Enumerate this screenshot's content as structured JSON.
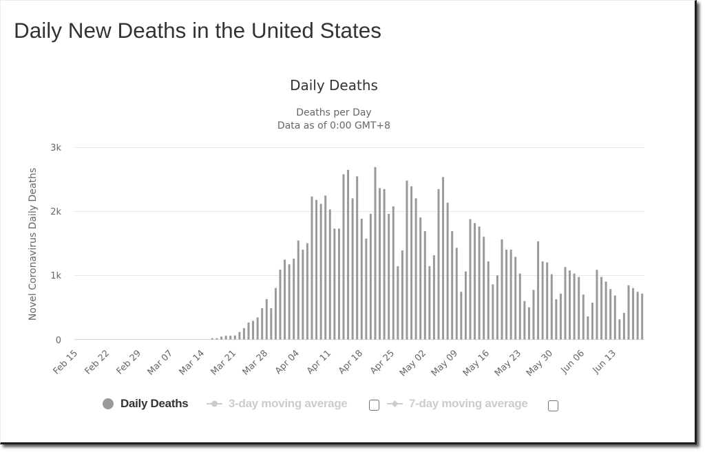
{
  "page": {
    "title": "Daily New Deaths in the United States"
  },
  "chart_data": {
    "type": "bar",
    "title": "Daily Deaths",
    "subtitle": [
      "Deaths per Day",
      "Data as of 0:00 GMT+8"
    ],
    "xlabel": "",
    "ylabel": "Novel Coronavirus Daily Deaths",
    "ylim": [
      0,
      3000
    ],
    "yticks": [
      0,
      1000,
      2000,
      3000
    ],
    "ytick_labels": [
      "0",
      "1k",
      "2k",
      "3k"
    ],
    "grid": true,
    "legend": "bottom",
    "xtick_labels": [
      "Feb 15",
      "Feb 22",
      "Feb 29",
      "Mar 07",
      "Mar 14",
      "Mar 21",
      "Mar 28",
      "Apr 04",
      "Apr 11",
      "Apr 18",
      "Apr 25",
      "May 02",
      "May 09",
      "May 16",
      "May 23",
      "May 30",
      "Jun 06",
      "Jun 13"
    ],
    "categories": [
      "Feb 15",
      "Feb 16",
      "Feb 17",
      "Feb 18",
      "Feb 19",
      "Feb 20",
      "Feb 21",
      "Feb 22",
      "Feb 23",
      "Feb 24",
      "Feb 25",
      "Feb 26",
      "Feb 27",
      "Feb 28",
      "Feb 29",
      "Mar 01",
      "Mar 02",
      "Mar 03",
      "Mar 04",
      "Mar 05",
      "Mar 06",
      "Mar 07",
      "Mar 08",
      "Mar 09",
      "Mar 10",
      "Mar 11",
      "Mar 12",
      "Mar 13",
      "Mar 14",
      "Mar 15",
      "Mar 16",
      "Mar 17",
      "Mar 18",
      "Mar 19",
      "Mar 20",
      "Mar 21",
      "Mar 22",
      "Mar 23",
      "Mar 24",
      "Mar 25",
      "Mar 26",
      "Mar 27",
      "Mar 28",
      "Mar 29",
      "Mar 30",
      "Mar 31",
      "Apr 01",
      "Apr 02",
      "Apr 03",
      "Apr 04",
      "Apr 05",
      "Apr 06",
      "Apr 07",
      "Apr 08",
      "Apr 09",
      "Apr 10",
      "Apr 11",
      "Apr 12",
      "Apr 13",
      "Apr 14",
      "Apr 15",
      "Apr 16",
      "Apr 17",
      "Apr 18",
      "Apr 19",
      "Apr 20",
      "Apr 21",
      "Apr 22",
      "Apr 23",
      "Apr 24",
      "Apr 25",
      "Apr 26",
      "Apr 27",
      "Apr 28",
      "Apr 29",
      "Apr 30",
      "May 01",
      "May 02",
      "May 03",
      "May 04",
      "May 05",
      "May 06",
      "May 07",
      "May 08",
      "May 09",
      "May 10",
      "May 11",
      "May 12",
      "May 13",
      "May 14",
      "May 15",
      "May 16",
      "May 17",
      "May 18",
      "May 19",
      "May 20",
      "May 21",
      "May 22",
      "May 23",
      "May 24",
      "May 25",
      "May 26",
      "May 27",
      "May 28",
      "May 29",
      "May 30",
      "May 31",
      "Jun 01",
      "Jun 02",
      "Jun 03",
      "Jun 04",
      "Jun 05",
      "Jun 06",
      "Jun 07",
      "Jun 08",
      "Jun 09",
      "Jun 10",
      "Jun 11",
      "Jun 12",
      "Jun 13",
      "Jun 14",
      "Jun 15",
      "Jun 16",
      "Jun 17",
      "Jun 18",
      "Jun 19"
    ],
    "series": [
      {
        "name": "Daily Deaths",
        "color": "#999999",
        "visible": true,
        "values": [
          0,
          0,
          0,
          0,
          0,
          0,
          0,
          0,
          0,
          0,
          0,
          0,
          0,
          0,
          0,
          0,
          0,
          0,
          0,
          0,
          0,
          0,
          0,
          0,
          0,
          0,
          0,
          0,
          0,
          0,
          20,
          20,
          45,
          60,
          60,
          62,
          117,
          176,
          264,
          290,
          345,
          487,
          630,
          487,
          803,
          1090,
          1245,
          1173,
          1260,
          1545,
          1401,
          1502,
          2231,
          2177,
          2116,
          2245,
          2029,
          1729,
          1729,
          2578,
          2646,
          2202,
          2545,
          1884,
          1574,
          1960,
          2690,
          2361,
          2347,
          1960,
          2076,
          1144,
          1390,
          2480,
          2390,
          2202,
          1903,
          1690,
          1144,
          1314,
          2347,
          2534,
          2134,
          1690,
          1430,
          744,
          1061,
          1877,
          1816,
          1762,
          1603,
          1217,
          859,
          1000,
          1563,
          1401,
          1401,
          1289,
          1029,
          599,
          502,
          773,
          1531,
          1217,
          1202,
          1018,
          628,
          715,
          1130,
          1076,
          1029,
          975,
          700,
          361,
          574,
          1087,
          975,
          903,
          787,
          686,
          314,
          415,
          845,
          801,
          744,
          715
        ]
      },
      {
        "name": "3-day moving average",
        "color": "#cccccc",
        "visible": false,
        "checkbox_checked": false
      },
      {
        "name": "7-day moving average",
        "color": "#cccccc",
        "visible": false,
        "checkbox_checked": false
      }
    ]
  }
}
